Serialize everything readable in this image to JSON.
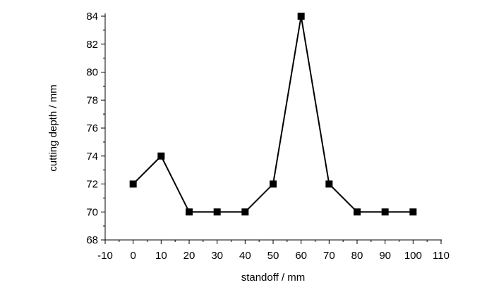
{
  "chart_data": {
    "type": "line",
    "title": "",
    "xlabel": "standoff / mm",
    "ylabel": "cutting depth / mm",
    "xlim": [
      -10,
      110
    ],
    "ylim": [
      68,
      84
    ],
    "xticks": [
      -10,
      0,
      10,
      20,
      30,
      40,
      50,
      60,
      70,
      80,
      90,
      100,
      110
    ],
    "yticks": [
      68,
      70,
      72,
      74,
      76,
      78,
      80,
      82,
      84
    ],
    "grid": false,
    "legend": "none",
    "marker": "square",
    "colors": {
      "line": "#000000",
      "marker": "#000000"
    },
    "series": [
      {
        "x": [
          0,
          10,
          20,
          30,
          40,
          50,
          60,
          70,
          80,
          90,
          100
        ],
        "y": [
          72,
          74,
          70,
          70,
          70,
          72,
          84,
          72,
          70,
          70,
          70
        ]
      }
    ]
  }
}
